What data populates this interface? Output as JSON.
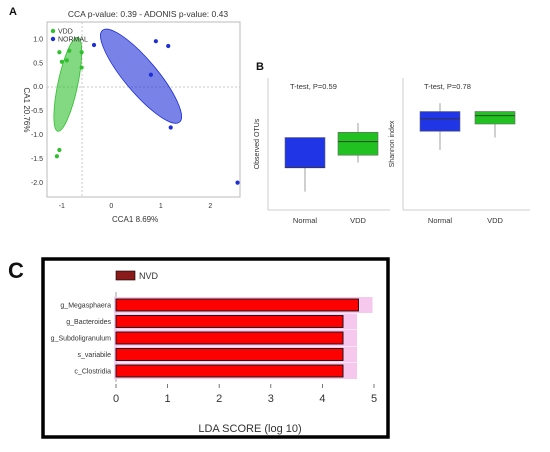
{
  "panels": {
    "A": {
      "letter": "A",
      "chart_data": {
        "type": "scatter",
        "title": "CCA p-value: 0.39 - ADONIS p-value: 0.43",
        "xlabel": "CCA1  8.69%",
        "ylabel": "CA1 20.76%",
        "xlim": [
          -1.3,
          2.6
        ],
        "ylim": [
          -2.3,
          1.35
        ],
        "xticks": [
          "-1",
          "0",
          "1",
          "2"
        ],
        "yticks": [
          "1.0",
          "0.5",
          "0.0",
          "-0.5",
          "-1.0",
          "-1.5",
          "-2.0"
        ],
        "series": [
          {
            "name": "VDD",
            "color": "#2fbf2f",
            "x": [
              -1.05,
              -1.0,
              -0.9,
              -0.85,
              -0.6,
              -0.6,
              -1.05,
              -1.1
            ],
            "y": [
              0.72,
              0.52,
              0.55,
              0.75,
              0.72,
              0.4,
              -1.32,
              -1.45
            ],
            "ellipse": {
              "cx": -0.88,
              "cy": 0.05,
              "rx": 0.2,
              "ry": 1.0,
              "rotate_deg": 12
            }
          },
          {
            "name": "NORMAL",
            "color": "#1f2fd6",
            "x": [
              -0.35,
              0.9,
              1.15,
              0.8,
              1.2,
              2.55
            ],
            "y": [
              0.87,
              0.95,
              0.85,
              0.25,
              -0.85,
              -2.0
            ],
            "ellipse": {
              "cx": 0.6,
              "cy": 0.22,
              "rx": 0.33,
              "ry": 1.25,
              "rotate_deg": -40
            }
          }
        ],
        "grid": false,
        "legend": "top-left"
      }
    },
    "B": {
      "letter": "B",
      "left": {
        "chart_data": {
          "type": "box",
          "annotation": "T-test, P=0.59",
          "ylabel": "Observed OTUs",
          "categories": [
            "Normal",
            "VDD"
          ],
          "boxes": [
            {
              "name": "Normal",
              "color": "#1f35e6",
              "whisker_low": 10,
              "q1": 33,
              "median": 33,
              "q3": 62,
              "whisker_high": 62
            },
            {
              "name": "VDD",
              "color": "#22c122",
              "whisker_low": 38,
              "q1": 45,
              "median": 58,
              "q3": 67,
              "whisker_high": 76
            }
          ],
          "ylim": [
            0,
            100
          ]
        }
      },
      "right": {
        "chart_data": {
          "type": "box",
          "annotation": "T-test, P=0.78",
          "ylabel": "Shannon index",
          "categories": [
            "Normal",
            "VDD"
          ],
          "boxes": [
            {
              "name": "Normal",
              "color": "#1f35e6",
              "whisker_low": 50,
              "q1": 68,
              "median": 80,
              "q3": 87,
              "whisker_high": 95
            },
            {
              "name": "VDD",
              "color": "#22c122",
              "whisker_low": 62,
              "q1": 75,
              "median": 83,
              "q3": 87,
              "whisker_high": 87
            }
          ],
          "ylim": [
            0,
            100
          ]
        }
      }
    },
    "C": {
      "letter": "C",
      "chart_data": {
        "type": "bar",
        "orientation": "horizontal",
        "categories": [
          "g_Megasphaera",
          "g_Bacteroides",
          "g_Subdoligranulum",
          "s_variabile",
          "c_Clostridia"
        ],
        "values": [
          4.7,
          4.4,
          4.4,
          4.4,
          4.4
        ],
        "legend": {
          "label": "NVD",
          "color": "#8b1a1a",
          "placement": "top-left"
        },
        "bar_color": "#ff0000",
        "xlabel": "LDA SCORE (log 10)",
        "xticks": [
          "0",
          "1",
          "2",
          "3",
          "4",
          "5"
        ],
        "xlim": [
          0,
          5
        ]
      }
    }
  }
}
